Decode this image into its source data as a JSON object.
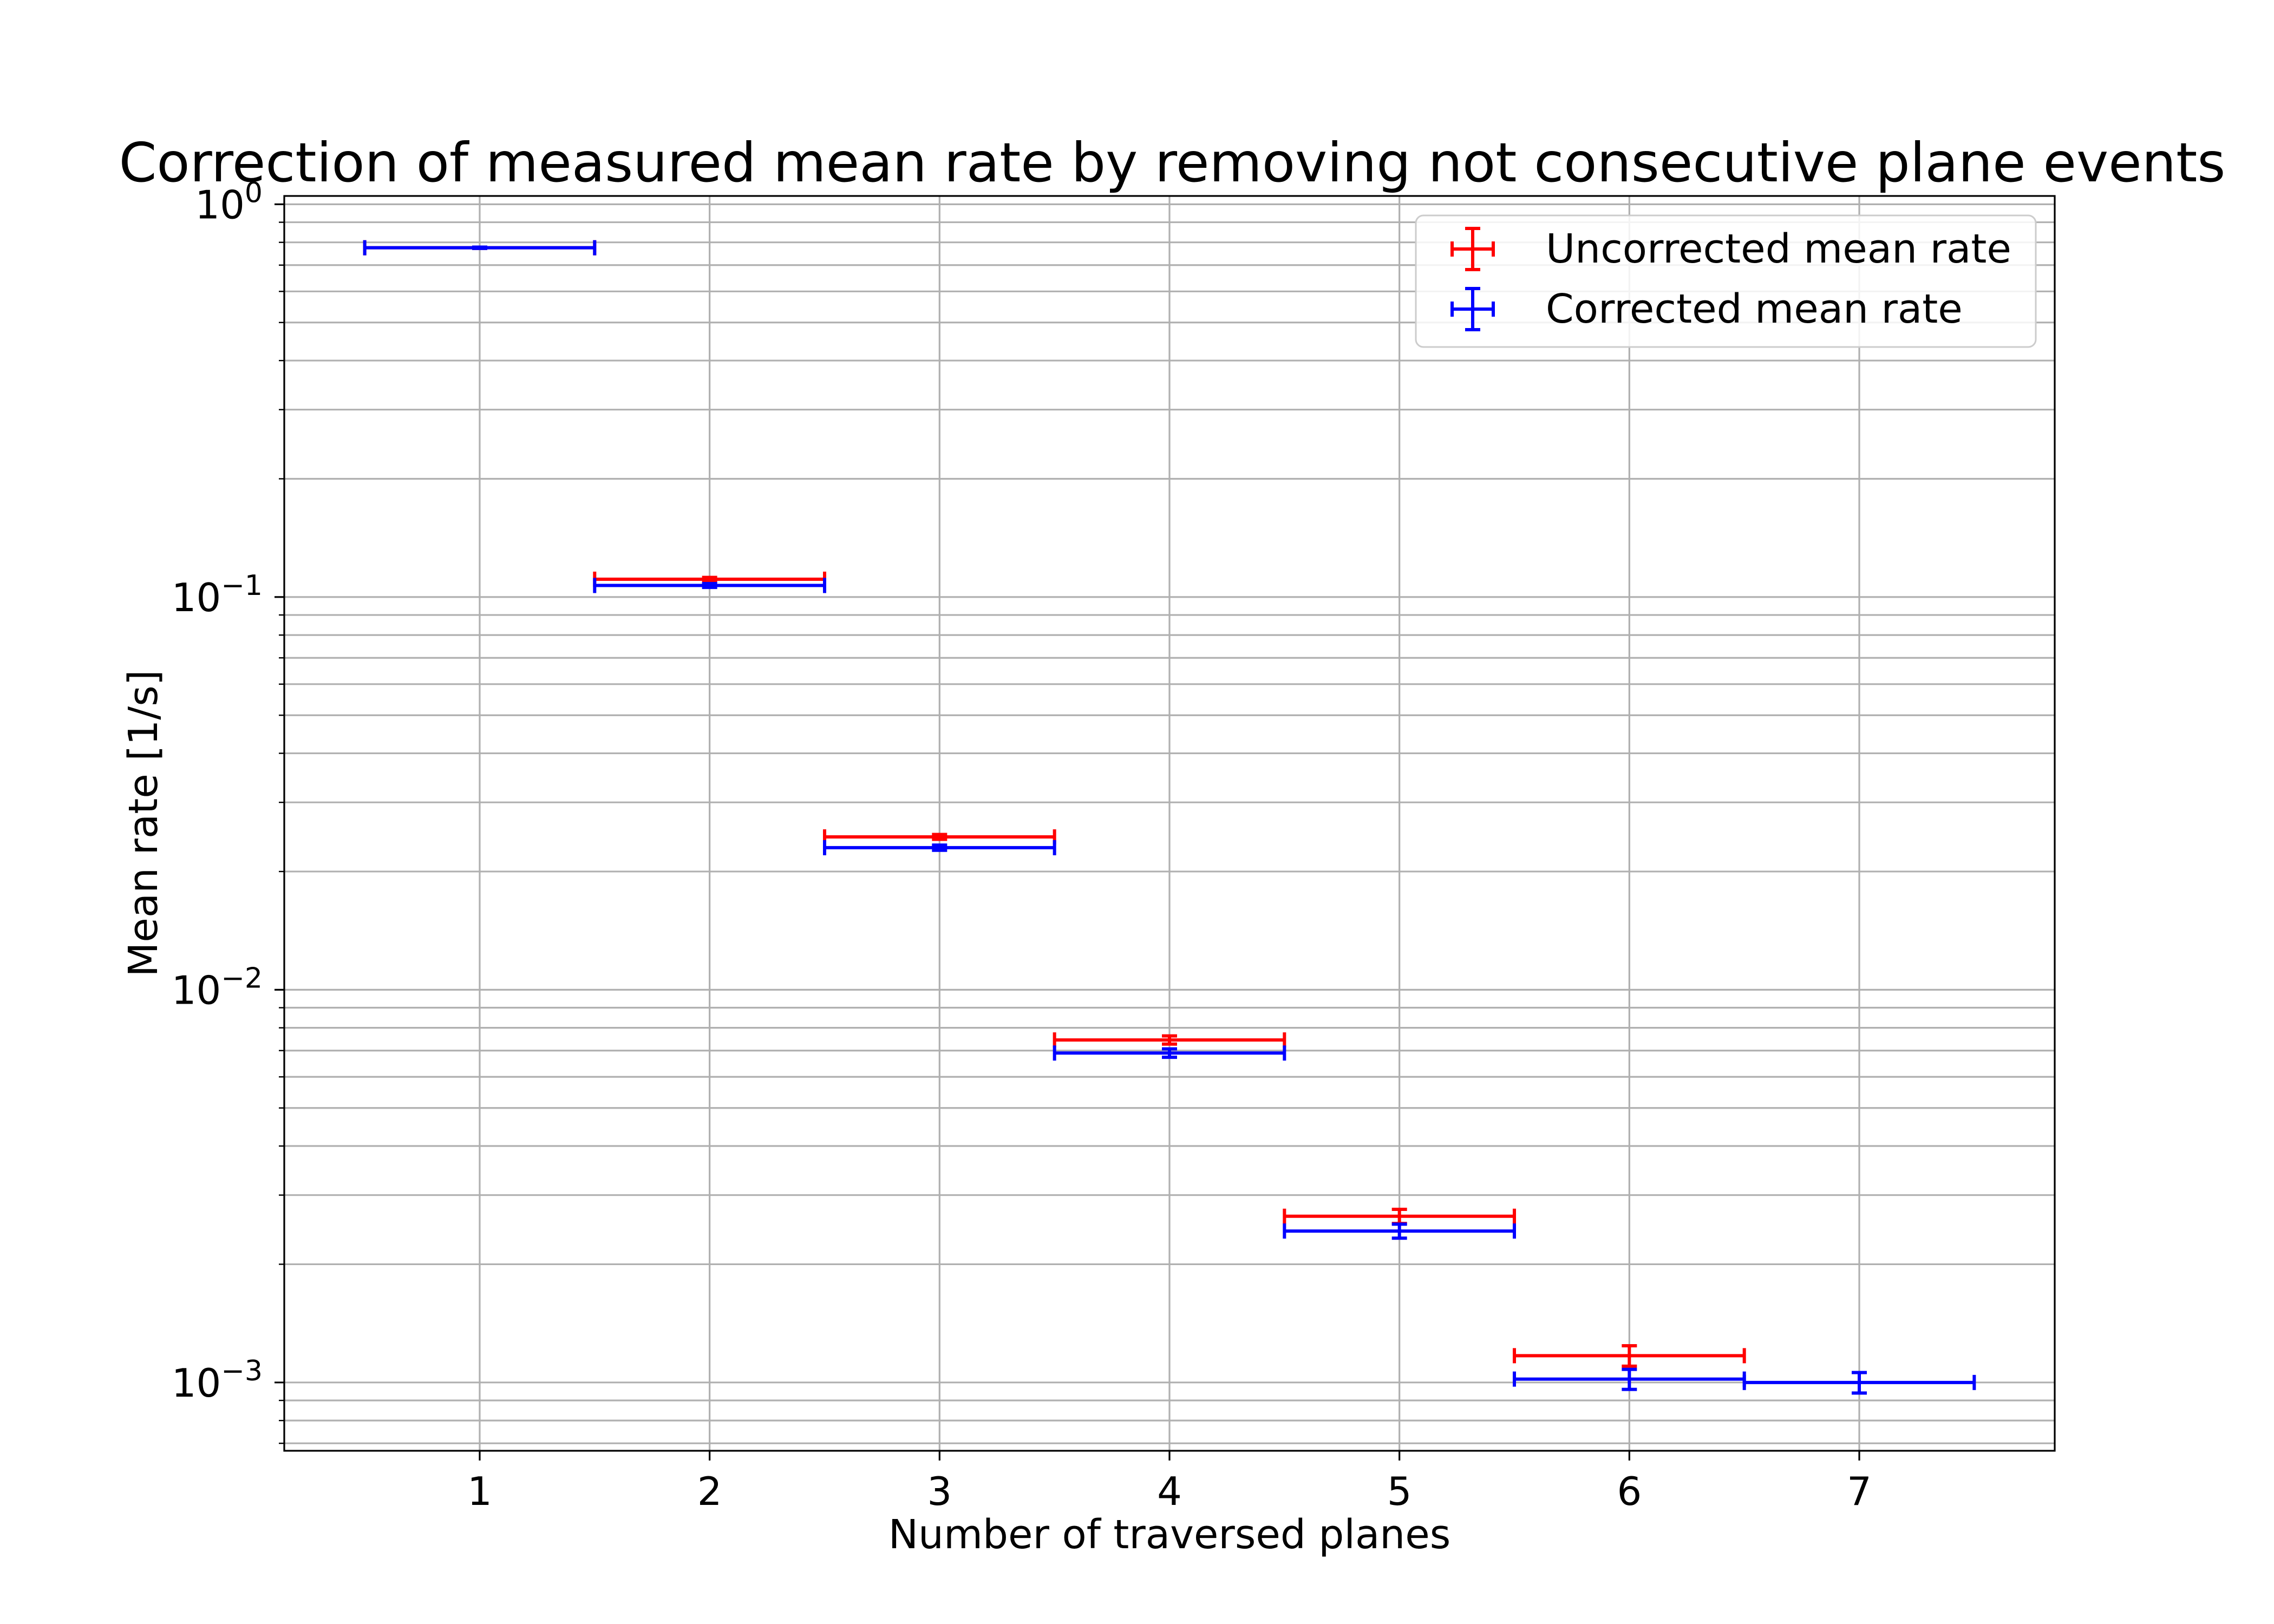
{
  "chart_data": {
    "type": "scatter",
    "title": "Correction of measured mean rate by removing not consecutive plane events",
    "xlabel": "Number of traversed planes",
    "ylabel": "Mean rate [1/s]",
    "xlim": [
      0.15,
      7.85
    ],
    "ylim": [
      0.00067,
      1.05
    ],
    "yscale": "log",
    "grid": true,
    "legend_position": "top-right",
    "x_ticks": [
      1,
      2,
      3,
      4,
      5,
      6,
      7
    ],
    "x_tick_labels": [
      "1",
      "2",
      "3",
      "4",
      "5",
      "6",
      "7"
    ],
    "y_ticks": [
      1,
      0.1,
      0.01,
      0.001
    ],
    "y_tick_labels": [
      {
        "base": "10",
        "exp": "0"
      },
      {
        "base": "10",
        "exp": "−1"
      },
      {
        "base": "10",
        "exp": "−2"
      },
      {
        "base": "10",
        "exp": "−3"
      }
    ],
    "series": [
      {
        "name": "Uncorrected mean rate",
        "color": "#ff0000",
        "points": [
          {
            "x": 1,
            "y": 0.775,
            "xerr": 0.5,
            "yerr": 0.003
          },
          {
            "x": 2,
            "y": 0.111,
            "xerr": 0.5,
            "yerr": 0.0012
          },
          {
            "x": 3,
            "y": 0.0245,
            "xerr": 0.5,
            "yerr": 0.00035
          },
          {
            "x": 4,
            "y": 0.00745,
            "xerr": 0.5,
            "yerr": 0.00018
          },
          {
            "x": 5,
            "y": 0.00265,
            "xerr": 0.5,
            "yerr": 0.00011
          },
          {
            "x": 6,
            "y": 0.00117,
            "xerr": 0.5,
            "yerr": 7e-05
          }
        ]
      },
      {
        "name": "Corrected mean rate",
        "color": "#0000ff",
        "points": [
          {
            "x": 1,
            "y": 0.775,
            "xerr": 0.5,
            "yerr": 0.003
          },
          {
            "x": 2,
            "y": 0.107,
            "xerr": 0.5,
            "yerr": 0.0012
          },
          {
            "x": 3,
            "y": 0.023,
            "xerr": 0.5,
            "yerr": 0.00035
          },
          {
            "x": 4,
            "y": 0.0069,
            "xerr": 0.5,
            "yerr": 0.00017
          },
          {
            "x": 5,
            "y": 0.00243,
            "xerr": 0.5,
            "yerr": 0.0001
          },
          {
            "x": 6,
            "y": 0.00102,
            "xerr": 0.5,
            "yerr": 6e-05
          },
          {
            "x": 7,
            "y": 0.001,
            "xerr": 0.5,
            "yerr": 6e-05
          }
        ]
      }
    ]
  }
}
